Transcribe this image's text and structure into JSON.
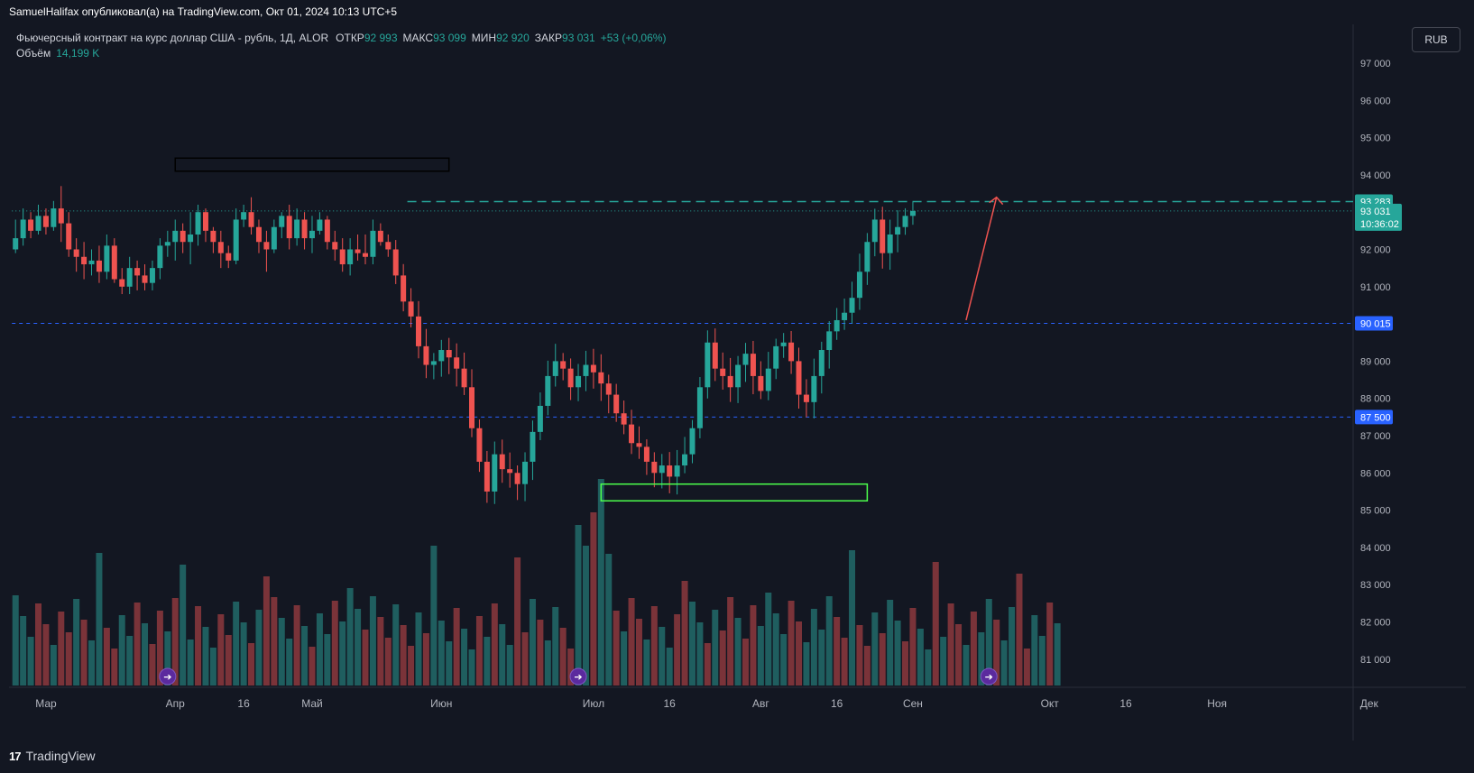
{
  "attribution": "SamuelHalifax опубликовал(а) на TradingView.com, Окт 01, 2024 10:13 UTC+5",
  "legend": {
    "title": "Фьючерсный контракт на курс доллар США - рубль, 1Д, ALOR",
    "open_label": "ОТКР",
    "open": "92 993",
    "high_label": "МАКС",
    "high": "93 099",
    "low_label": "МИН",
    "low": "92 920",
    "close_label": "ЗАКР",
    "close": "93 031",
    "change": "+53 (+0,06%)",
    "volume_label": "Объём",
    "volume": "14,199 K"
  },
  "currency_button": "RUB",
  "footer": {
    "logo_mark": "17",
    "brand": "TradingView"
  },
  "colors": {
    "background": "#131722",
    "up": "#26a69a",
    "down": "#ef5350",
    "vol_up": "#1f5e5f",
    "vol_down": "#7a3339",
    "h_line_blue": "#2962ff",
    "h_line_green": "#26a69a",
    "box_green": "#4cff4c",
    "box_black": "#000000",
    "arrow": "#ef5350"
  },
  "chart_data": {
    "type": "candlestick",
    "symbol": "USD/RUB futures, 1D, ALOR",
    "y_axis": {
      "ticks": [
        97000,
        96000,
        95000,
        94000,
        93000,
        92000,
        91000,
        90000,
        89000,
        88000,
        87000,
        86000,
        85000,
        84000,
        83000,
        82000,
        81000
      ],
      "tick_labels": [
        "97 000",
        "96 000",
        "95 000",
        "94 000",
        "93 000",
        "92 000",
        "91 000",
        "90 000",
        "89 000",
        "88 000",
        "87 000",
        "86 000",
        "85 000",
        "84 000",
        "83 000",
        "82 000",
        "81 000"
      ]
    },
    "x_axis": {
      "labels": [
        {
          "label": "Мар",
          "bar": 4
        },
        {
          "label": "Апр",
          "bar": 21
        },
        {
          "label": "16",
          "bar": 30
        },
        {
          "label": "Май",
          "bar": 39
        },
        {
          "label": "Июн",
          "bar": 56
        },
        {
          "label": "Июл",
          "bar": 76
        },
        {
          "label": "16",
          "bar": 86
        },
        {
          "label": "Авг",
          "bar": 98
        },
        {
          "label": "16",
          "bar": 108
        },
        {
          "label": "Сен",
          "bar": 118
        },
        {
          "label": "Окт",
          "bar": 136
        },
        {
          "label": "16",
          "bar": 146
        },
        {
          "label": "Ноя",
          "bar": 158
        },
        {
          "label": "Дек",
          "bar": 178
        }
      ]
    },
    "price_labels": [
      {
        "value": 93283,
        "text": "93 283",
        "style": "green"
      },
      {
        "value": 93031,
        "text": "93 031",
        "sub": "10:36:02",
        "style": "green"
      },
      {
        "value": 90015,
        "text": "90 015",
        "style": "blue"
      },
      {
        "value": 87500,
        "text": "87 500",
        "style": "blue"
      }
    ],
    "horizontal_lines": [
      {
        "value": 93283,
        "style": "dashed",
        "color": "green",
        "from_bar": 52
      },
      {
        "value": 93031,
        "style": "dotted",
        "color": "green",
        "from_bar": 0
      },
      {
        "value": 90015,
        "style": "dashed",
        "color": "blue",
        "from_bar": 0
      },
      {
        "value": 87500,
        "style": "dashed",
        "color": "blue",
        "from_bar": 0
      }
    ],
    "rectangles": [
      {
        "from_bar": 21,
        "to_bar": 57,
        "top": 94450,
        "bottom": 94100,
        "color": "black"
      },
      {
        "from_bar": 77,
        "to_bar": 112,
        "top": 85700,
        "bottom": 85250,
        "color": "green"
      }
    ],
    "arrow": {
      "from_bar": 125,
      "from_value": 90100,
      "to_bar": 129,
      "to_value": 93400
    },
    "event_markers_bars": [
      20,
      74,
      128
    ],
    "candles": [
      [
        92000,
        92300,
        92800,
        91900
      ],
      [
        92300,
        92800,
        93100,
        92100
      ],
      [
        92800,
        92500,
        93000,
        92300
      ],
      [
        92500,
        92900,
        93200,
        92400
      ],
      [
        92900,
        92600,
        93100,
        92400
      ],
      [
        92600,
        93100,
        93300,
        92500
      ],
      [
        93100,
        92700,
        93700,
        92200
      ],
      [
        92700,
        92000,
        93000,
        91800
      ],
      [
        92000,
        91800,
        92300,
        91400
      ],
      [
        91800,
        91600,
        92200,
        91200
      ],
      [
        91600,
        91700,
        92000,
        91300
      ],
      [
        91700,
        91400,
        92100,
        91100
      ],
      [
        91400,
        92100,
        92400,
        91200
      ],
      [
        92100,
        91200,
        92300,
        91100
      ],
      [
        91200,
        91000,
        91500,
        90800
      ],
      [
        91000,
        91500,
        91800,
        90800
      ],
      [
        91500,
        91300,
        91700,
        90900
      ],
      [
        91300,
        91100,
        91600,
        90900
      ],
      [
        91100,
        91500,
        91700,
        90900
      ],
      [
        91500,
        92100,
        92300,
        91200
      ],
      [
        92100,
        92200,
        92500,
        91800
      ],
      [
        92200,
        92500,
        92800,
        91700
      ],
      [
        92500,
        92200,
        92700,
        91900
      ],
      [
        92200,
        92400,
        93000,
        91600
      ],
      [
        92400,
        93000,
        93200,
        92100
      ],
      [
        93000,
        92500,
        93100,
        92200
      ],
      [
        92500,
        92200,
        92600,
        91900
      ],
      [
        92200,
        91900,
        92500,
        91500
      ],
      [
        91900,
        91700,
        92100,
        91500
      ],
      [
        91700,
        92800,
        93100,
        91600
      ],
      [
        92800,
        93000,
        93200,
        92600
      ],
      [
        93000,
        92600,
        93400,
        92400
      ],
      [
        92600,
        92200,
        92800,
        91900
      ],
      [
        92200,
        92000,
        92500,
        91400
      ],
      [
        92000,
        92600,
        92800,
        91900
      ],
      [
        92600,
        92900,
        93000,
        92300
      ],
      [
        92900,
        92300,
        93200,
        92000
      ],
      [
        92300,
        92800,
        93100,
        92100
      ],
      [
        92800,
        92300,
        93000,
        92000
      ],
      [
        92300,
        92500,
        92900,
        91900
      ],
      [
        92500,
        92800,
        93000,
        92400
      ],
      [
        92800,
        92200,
        92900,
        92000
      ],
      [
        92200,
        92000,
        92500,
        91700
      ],
      [
        92000,
        91600,
        92300,
        91400
      ],
      [
        91600,
        92000,
        92300,
        91300
      ],
      [
        92000,
        91900,
        92400,
        91700
      ],
      [
        91900,
        91800,
        92400,
        91600
      ],
      [
        91800,
        92500,
        92800,
        91600
      ],
      [
        92500,
        92200,
        92700,
        92100
      ]
    ]
  }
}
